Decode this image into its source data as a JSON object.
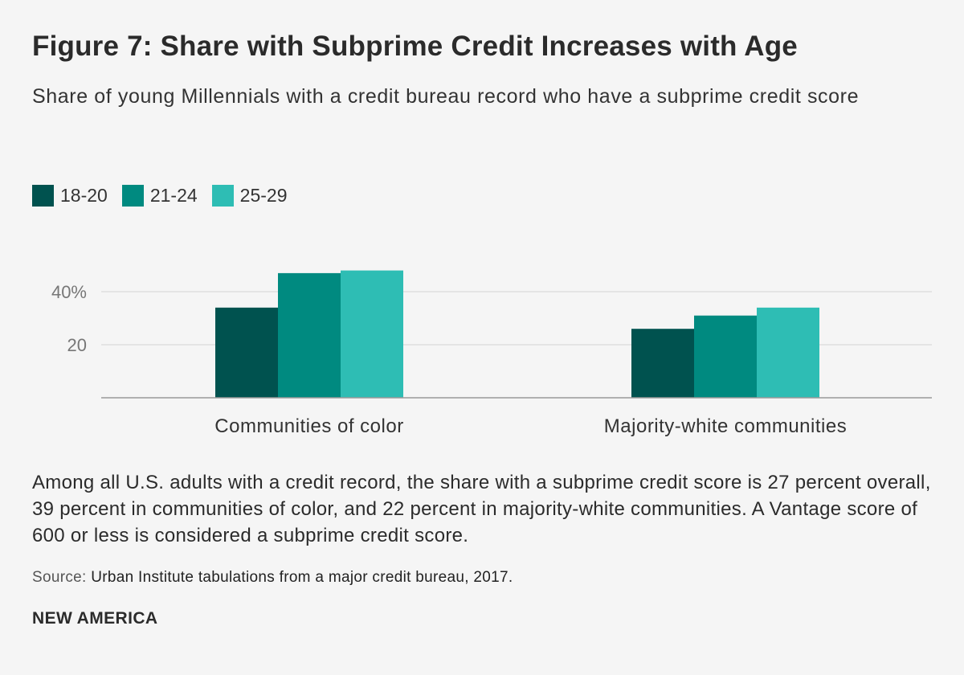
{
  "header": {
    "title": "Figure 7: Share with Subprime Credit Increases with Age",
    "subtitle": "Share of young Millennials with a credit bureau record who have a subprime credit score"
  },
  "colors": {
    "s1": "#00524f",
    "s2": "#008a80",
    "s3": "#2ebdb4",
    "grid": "#d4d4d4",
    "axis": "#9a9a9a",
    "tick": "#777777",
    "category": "#333333"
  },
  "chart_data": {
    "type": "bar",
    "title": "Figure 7: Share with Subprime Credit Increases with Age",
    "categories": [
      "Communities of color",
      "Majority-white communities"
    ],
    "series": [
      {
        "name": "18-20",
        "values": [
          34,
          26
        ]
      },
      {
        "name": "21-24",
        "values": [
          47,
          31
        ]
      },
      {
        "name": "25-29",
        "values": [
          48,
          34
        ]
      }
    ],
    "yticks": [
      {
        "value": 20,
        "label": "20"
      },
      {
        "value": 40,
        "label": "40%"
      }
    ],
    "ylim": [
      0,
      50
    ],
    "xlabel": "",
    "ylabel": "",
    "grid": true,
    "legend": "top-left"
  },
  "note": "Among all U.S. adults with a credit record, the share with a subprime credit score is 27 percent overall, 39 percent in communities of color, and 22 percent in majority-white communities. A Vantage score of 600 or less is considered a subprime credit score.",
  "source": {
    "label": "Source:",
    "text": "Urban Institute tabulations from a major credit bureau, 2017."
  },
  "brand": "NEW AMERICA"
}
